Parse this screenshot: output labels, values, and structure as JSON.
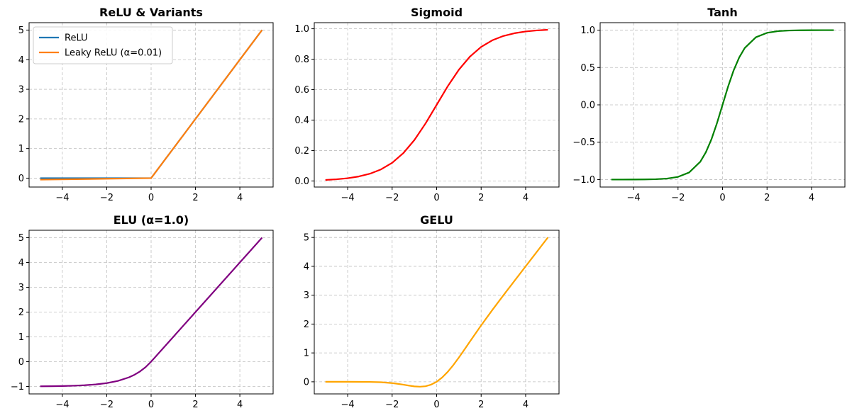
{
  "chart_data": [
    {
      "type": "line",
      "title": "ReLU & Variants",
      "xlabel": "",
      "ylabel": "",
      "xlim": [
        -5.5,
        5.5
      ],
      "ylim": [
        -0.3,
        5.25
      ],
      "xticks": [
        -4,
        -2,
        0,
        2,
        4
      ],
      "yticks": [
        0,
        1,
        2,
        3,
        4,
        5
      ],
      "xtick_labels": [
        "−4",
        "−2",
        "0",
        "2",
        "4"
      ],
      "ytick_labels": [
        "0",
        "1",
        "2",
        "3",
        "4",
        "5"
      ],
      "grid": true,
      "legend": "top-left",
      "series": [
        {
          "name": "ReLU",
          "color": "#1f77b4",
          "x": [
            -5,
            0,
            5
          ],
          "y": [
            0,
            0,
            5
          ]
        },
        {
          "name": "Leaky ReLU (α=0.01)",
          "color": "#ff7f0e",
          "x": [
            -5,
            0,
            5
          ],
          "y": [
            -0.05,
            0,
            5
          ]
        }
      ]
    },
    {
      "type": "line",
      "title": "Sigmoid",
      "xlabel": "",
      "ylabel": "",
      "xlim": [
        -5.5,
        5.5
      ],
      "ylim": [
        -0.04,
        1.04
      ],
      "xticks": [
        -4,
        -2,
        0,
        2,
        4
      ],
      "yticks": [
        0,
        0.2,
        0.4,
        0.6,
        0.8,
        1.0
      ],
      "xtick_labels": [
        "−4",
        "−2",
        "0",
        "2",
        "4"
      ],
      "ytick_labels": [
        "0.0",
        "0.2",
        "0.4",
        "0.6",
        "0.8",
        "1.0"
      ],
      "grid": true,
      "series": [
        {
          "color": "#ff0000",
          "x": [
            -5,
            -4.5,
            -4,
            -3.5,
            -3,
            -2.5,
            -2,
            -1.5,
            -1,
            -0.5,
            0,
            0.5,
            1,
            1.5,
            2,
            2.5,
            3,
            3.5,
            4,
            4.5,
            5
          ],
          "y": [
            0.0067,
            0.011,
            0.018,
            0.0293,
            0.0474,
            0.0759,
            0.1192,
            0.1824,
            0.2689,
            0.3775,
            0.5,
            0.6225,
            0.7311,
            0.8176,
            0.8808,
            0.9241,
            0.9526,
            0.9707,
            0.982,
            0.989,
            0.9933
          ]
        }
      ]
    },
    {
      "type": "line",
      "title": "Tanh",
      "xlabel": "",
      "ylabel": "",
      "xlim": [
        -5.5,
        5.5
      ],
      "ylim": [
        -1.1,
        1.1
      ],
      "xticks": [
        -4,
        -2,
        0,
        2,
        4
      ],
      "yticks": [
        -1.0,
        -0.5,
        0,
        0.5,
        1.0
      ],
      "xtick_labels": [
        "−4",
        "−2",
        "0",
        "2",
        "4"
      ],
      "ytick_labels": [
        "−1.0",
        "−0.5",
        "0.0",
        "0.5",
        "1.0"
      ],
      "grid": true,
      "series": [
        {
          "color": "#008000",
          "x": [
            -5,
            -4.5,
            -4,
            -3.5,
            -3,
            -2.5,
            -2,
            -1.5,
            -1,
            -0.75,
            -0.5,
            -0.25,
            0,
            0.25,
            0.5,
            0.75,
            1,
            1.5,
            2,
            2.5,
            3,
            3.5,
            4,
            4.5,
            5
          ],
          "y": [
            -0.9999,
            -0.9998,
            -0.9993,
            -0.9982,
            -0.9951,
            -0.9866,
            -0.964,
            -0.9051,
            -0.7616,
            -0.6351,
            -0.4621,
            -0.2449,
            0,
            0.2449,
            0.4621,
            0.6351,
            0.7616,
            0.9051,
            0.964,
            0.9866,
            0.9951,
            0.9982,
            0.9993,
            0.9998,
            0.9999
          ]
        }
      ]
    },
    {
      "type": "line",
      "title": "ELU (α=1.0)",
      "xlabel": "",
      "ylabel": "",
      "xlim": [
        -5.5,
        5.5
      ],
      "ylim": [
        -1.3,
        5.3
      ],
      "xticks": [
        -4,
        -2,
        0,
        2,
        4
      ],
      "yticks": [
        -1,
        0,
        1,
        2,
        3,
        4,
        5
      ],
      "xtick_labels": [
        "−4",
        "−2",
        "0",
        "2",
        "4"
      ],
      "ytick_labels": [
        "−1",
        "0",
        "1",
        "2",
        "3",
        "4",
        "5"
      ],
      "grid": true,
      "series": [
        {
          "color": "#800080",
          "x": [
            -5,
            -4.5,
            -4,
            -3.5,
            -3,
            -2.5,
            -2,
            -1.5,
            -1,
            -0.75,
            -0.5,
            -0.25,
            0,
            1,
            2,
            3,
            4,
            5
          ],
          "y": [
            -0.9933,
            -0.9889,
            -0.9817,
            -0.9698,
            -0.9502,
            -0.9179,
            -0.8647,
            -0.7769,
            -0.6321,
            -0.5276,
            -0.3935,
            -0.2212,
            0,
            1,
            2,
            3,
            4,
            5
          ]
        }
      ]
    },
    {
      "type": "line",
      "title": "GELU",
      "xlabel": "",
      "ylabel": "",
      "xlim": [
        -5.5,
        5.5
      ],
      "ylim": [
        -0.42,
        5.25
      ],
      "xticks": [
        -4,
        -2,
        0,
        2,
        4
      ],
      "yticks": [
        0,
        1,
        2,
        3,
        4,
        5
      ],
      "xtick_labels": [
        "−4",
        "−2",
        "0",
        "2",
        "4"
      ],
      "ytick_labels": [
        "0",
        "1",
        "2",
        "3",
        "4",
        "5"
      ],
      "grid": true,
      "series": [
        {
          "color": "#ffa500",
          "x": [
            -5,
            -4,
            -3,
            -2.5,
            -2,
            -1.75,
            -1.5,
            -1.25,
            -1,
            -0.75,
            -0.5,
            -0.25,
            0,
            0.25,
            0.5,
            0.75,
            1,
            1.25,
            1.5,
            2,
            2.5,
            3,
            4,
            5
          ],
          "y": [
            0,
            -0.0001,
            -0.004,
            -0.0155,
            -0.0455,
            -0.0702,
            -0.1002,
            -0.1321,
            -0.1587,
            -0.1702,
            -0.1543,
            -0.0988,
            0,
            0.1512,
            0.3457,
            0.5798,
            0.8413,
            1.1179,
            1.3998,
            1.9545,
            2.4845,
            2.996,
            3.9999,
            5
          ]
        }
      ]
    }
  ]
}
